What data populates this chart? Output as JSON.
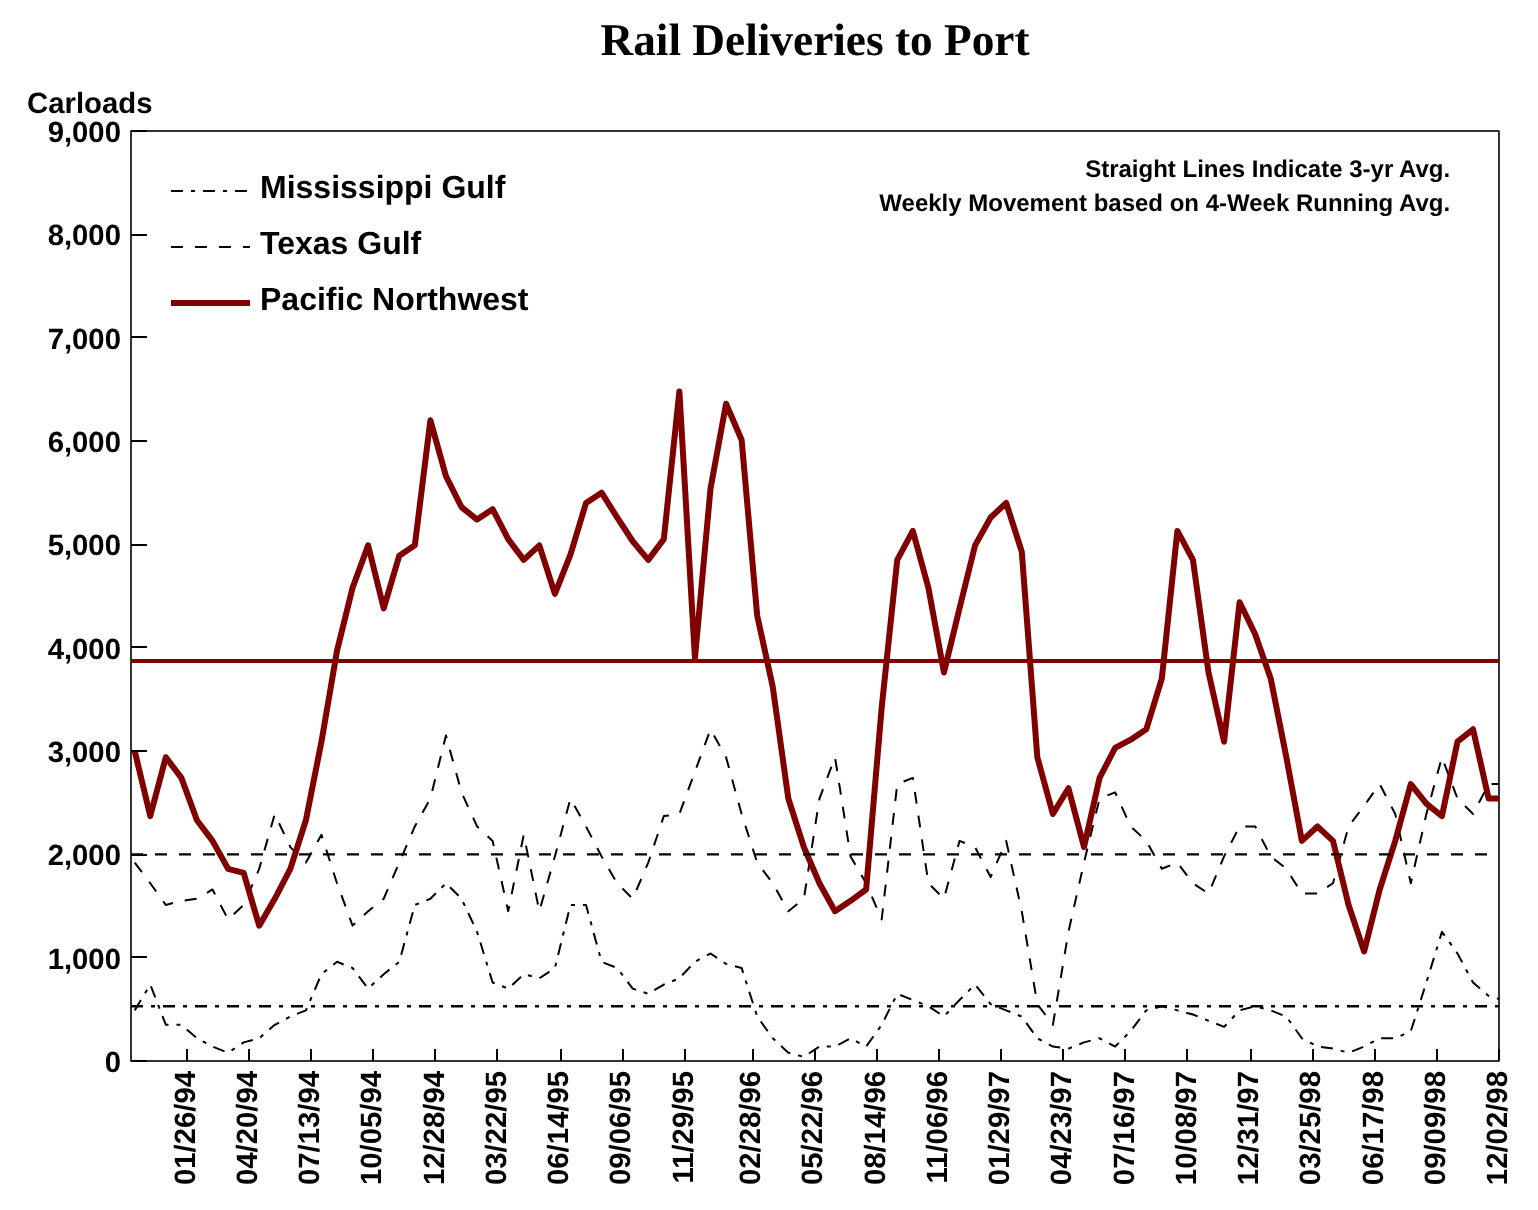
{
  "chart_data": {
    "type": "line",
    "title": "Rail Deliveries to Port",
    "ylabel": "Carloads",
    "annotations": [
      "Straight Lines Indicate 3-yr Avg.",
      "Weekly Movement based on 4-Week Running Avg."
    ],
    "x": [
      "1993-11-17",
      "1993-12-08",
      "1993-12-29",
      "1994-01-19",
      "1994-02-09",
      "1994-03-02",
      "1994-03-23",
      "1994-04-13",
      "1994-05-04",
      "1994-05-25",
      "1994-06-15",
      "1994-07-06",
      "1994-07-27",
      "1994-08-17",
      "1994-09-07",
      "1994-09-28",
      "1994-10-19",
      "1994-11-09",
      "1994-11-30",
      "1994-12-21",
      "1995-01-11",
      "1995-02-01",
      "1995-02-22",
      "1995-03-15",
      "1995-04-05",
      "1995-04-26",
      "1995-05-17",
      "1995-06-07",
      "1995-06-28",
      "1995-07-19",
      "1995-08-09",
      "1995-08-30",
      "1995-09-20",
      "1995-10-11",
      "1995-11-01",
      "1995-11-22",
      "1995-12-13",
      "1996-01-03",
      "1996-01-24",
      "1996-02-14",
      "1996-03-06",
      "1996-03-27",
      "1996-04-17",
      "1996-05-08",
      "1996-05-29",
      "1996-06-19",
      "1996-07-10",
      "1996-07-31",
      "1996-08-21",
      "1996-09-11",
      "1996-10-02",
      "1996-10-23",
      "1996-11-13",
      "1996-12-04",
      "1996-12-25",
      "1997-01-15",
      "1997-02-05",
      "1997-02-26",
      "1997-03-19",
      "1997-04-09",
      "1997-04-30",
      "1997-05-21",
      "1997-06-11",
      "1997-07-02",
      "1997-07-23",
      "1997-08-13",
      "1997-09-03",
      "1997-09-24",
      "1997-10-15",
      "1997-11-05",
      "1997-11-26",
      "1997-12-17",
      "1998-01-07",
      "1998-01-28",
      "1998-02-18",
      "1998-03-11",
      "1998-04-01",
      "1998-04-22",
      "1998-05-13",
      "1998-06-03",
      "1998-06-24",
      "1998-07-15",
      "1998-08-05",
      "1998-08-26",
      "1998-09-16",
      "1998-10-07",
      "1998-10-28",
      "1998-11-18",
      "1998-12-02"
    ],
    "series": [
      {
        "name": "Mississippi Gulf",
        "color": "#000000",
        "line_style": "dashdot",
        "values": [
          490,
          740,
          350,
          350,
          220,
          140,
          80,
          180,
          220,
          350,
          430,
          490,
          840,
          960,
          900,
          700,
          840,
          960,
          1510,
          1570,
          1720,
          1570,
          1250,
          760,
          700,
          840,
          800,
          900,
          1510,
          1510,
          960,
          900,
          700,
          650,
          740,
          800,
          960,
          1040,
          940,
          900,
          430,
          220,
          80,
          40,
          140,
          140,
          220,
          140,
          350,
          650,
          590,
          530,
          430,
          590,
          740,
          550,
          490,
          430,
          220,
          140,
          120,
          180,
          220,
          140,
          290,
          490,
          530,
          490,
          450,
          390,
          330,
          490,
          530,
          490,
          430,
          220,
          140,
          120,
          80,
          140,
          220,
          220,
          290,
          760,
          1250,
          1040,
          760,
          630,
          600
        ]
      },
      {
        "name": "Texas Gulf",
        "color": "#000000",
        "line_style": "dashed",
        "values": [
          1920,
          1720,
          1510,
          1550,
          1570,
          1660,
          1370,
          1510,
          1860,
          2390,
          2070,
          1920,
          2190,
          1720,
          1310,
          1450,
          1570,
          1920,
          2270,
          2540,
          3150,
          2600,
          2270,
          2130,
          1450,
          2190,
          1450,
          1980,
          2540,
          2270,
          1980,
          1720,
          1570,
          1920,
          2370,
          2390,
          2800,
          3210,
          2940,
          2390,
          1920,
          1720,
          1450,
          1570,
          2540,
          2940,
          1980,
          1720,
          1370,
          2680,
          2740,
          1720,
          1570,
          2130,
          2070,
          1780,
          2130,
          1450,
          550,
          350,
          1250,
          1920,
          2540,
          2600,
          2270,
          2130,
          1860,
          1920,
          1720,
          1620,
          1980,
          2270,
          2270,
          1980,
          1860,
          1620,
          1620,
          1720,
          2270,
          2470,
          2680,
          2390,
          1720,
          2390,
          2940,
          2540,
          2390,
          2680,
          2680
        ]
      },
      {
        "name": "Pacific Northwest",
        "color": "#800000",
        "line_style": "solid",
        "values": [
          3000,
          2370,
          2940,
          2740,
          2330,
          2130,
          1860,
          1820,
          1310,
          1570,
          1860,
          2330,
          3090,
          3970,
          4580,
          4990,
          4380,
          4890,
          4990,
          6200,
          5660,
          5360,
          5240,
          5340,
          5050,
          4850,
          4990,
          4520,
          4900,
          5400,
          5500,
          5260,
          5030,
          4850,
          5050,
          6480,
          3900,
          5540,
          6360,
          6010,
          4310,
          3620,
          2540,
          2070,
          1720,
          1450,
          1550,
          1660,
          3420,
          4850,
          5130,
          4580,
          3760,
          4380,
          4990,
          5260,
          5400,
          4930,
          2940,
          2390,
          2640,
          2070,
          2740,
          3030,
          3110,
          3210,
          3700,
          5130,
          4850,
          3760,
          3090,
          4440,
          4130,
          3700,
          2940,
          2130,
          2270,
          2130,
          1510,
          1060,
          1660,
          2130,
          2680,
          2490,
          2370,
          3090,
          3210,
          2540,
          2540
        ]
      }
    ],
    "ref_lines": [
      {
        "axis": "y",
        "value": 530,
        "label": null,
        "color": "#000000",
        "line_style": "dashdot"
      },
      {
        "axis": "y",
        "value": 2000,
        "label": null,
        "color": "#000000",
        "line_style": "dashed"
      },
      {
        "axis": "y",
        "value": 3870,
        "label": null,
        "color": "#800000",
        "line_style": "solid"
      }
    ],
    "xlim": [
      "1993-11-12",
      "1998-12-02"
    ],
    "xticks": [
      {
        "value": "1994-01-26",
        "label": "01/26/94"
      },
      {
        "value": "1994-04-20",
        "label": "04/20/94"
      },
      {
        "value": "1994-07-13",
        "label": "07/13/94"
      },
      {
        "value": "1994-10-05",
        "label": "10/05/94"
      },
      {
        "value": "1994-12-28",
        "label": "12/28/94"
      },
      {
        "value": "1995-03-22",
        "label": "03/22/95"
      },
      {
        "value": "1995-06-14",
        "label": "06/14/95"
      },
      {
        "value": "1995-09-06",
        "label": "09/06/95"
      },
      {
        "value": "1995-11-29",
        "label": "11/29/95"
      },
      {
        "value": "1996-02-28",
        "label": "02/28/96"
      },
      {
        "value": "1996-05-22",
        "label": "05/22/96"
      },
      {
        "value": "1996-08-14",
        "label": "08/14/96"
      },
      {
        "value": "1996-11-06",
        "label": "11/06/96"
      },
      {
        "value": "1997-01-29",
        "label": "01/29/97"
      },
      {
        "value": "1997-04-23",
        "label": "04/23/97"
      },
      {
        "value": "1997-07-16",
        "label": "07/16/97"
      },
      {
        "value": "1997-10-08",
        "label": "10/08/97"
      },
      {
        "value": "1997-12-31",
        "label": "12/31/97"
      },
      {
        "value": "1998-03-25",
        "label": "03/25/98"
      },
      {
        "value": "1998-06-17",
        "label": "06/17/98"
      },
      {
        "value": "1998-09-09",
        "label": "09/09/98"
      },
      {
        "value": "1998-12-02",
        "label": "12/02/98"
      }
    ],
    "ylim": [
      0,
      9000
    ],
    "yticks": [
      0,
      {
        "value": 1000,
        "label": "1,000"
      },
      {
        "value": 2000,
        "label": "2,000"
      },
      {
        "value": 3000,
        "label": "3,000"
      },
      {
        "value": 4000,
        "label": "4,000"
      },
      {
        "value": 5000,
        "label": "5,000"
      },
      {
        "value": 6000,
        "label": "6,000"
      },
      {
        "value": 7000,
        "label": "7,000"
      },
      {
        "value": 8000,
        "label": "8,000"
      },
      {
        "value": 9000,
        "label": "9,000"
      }
    ],
    "grid": false,
    "legend": "top left",
    "marker": "none"
  }
}
